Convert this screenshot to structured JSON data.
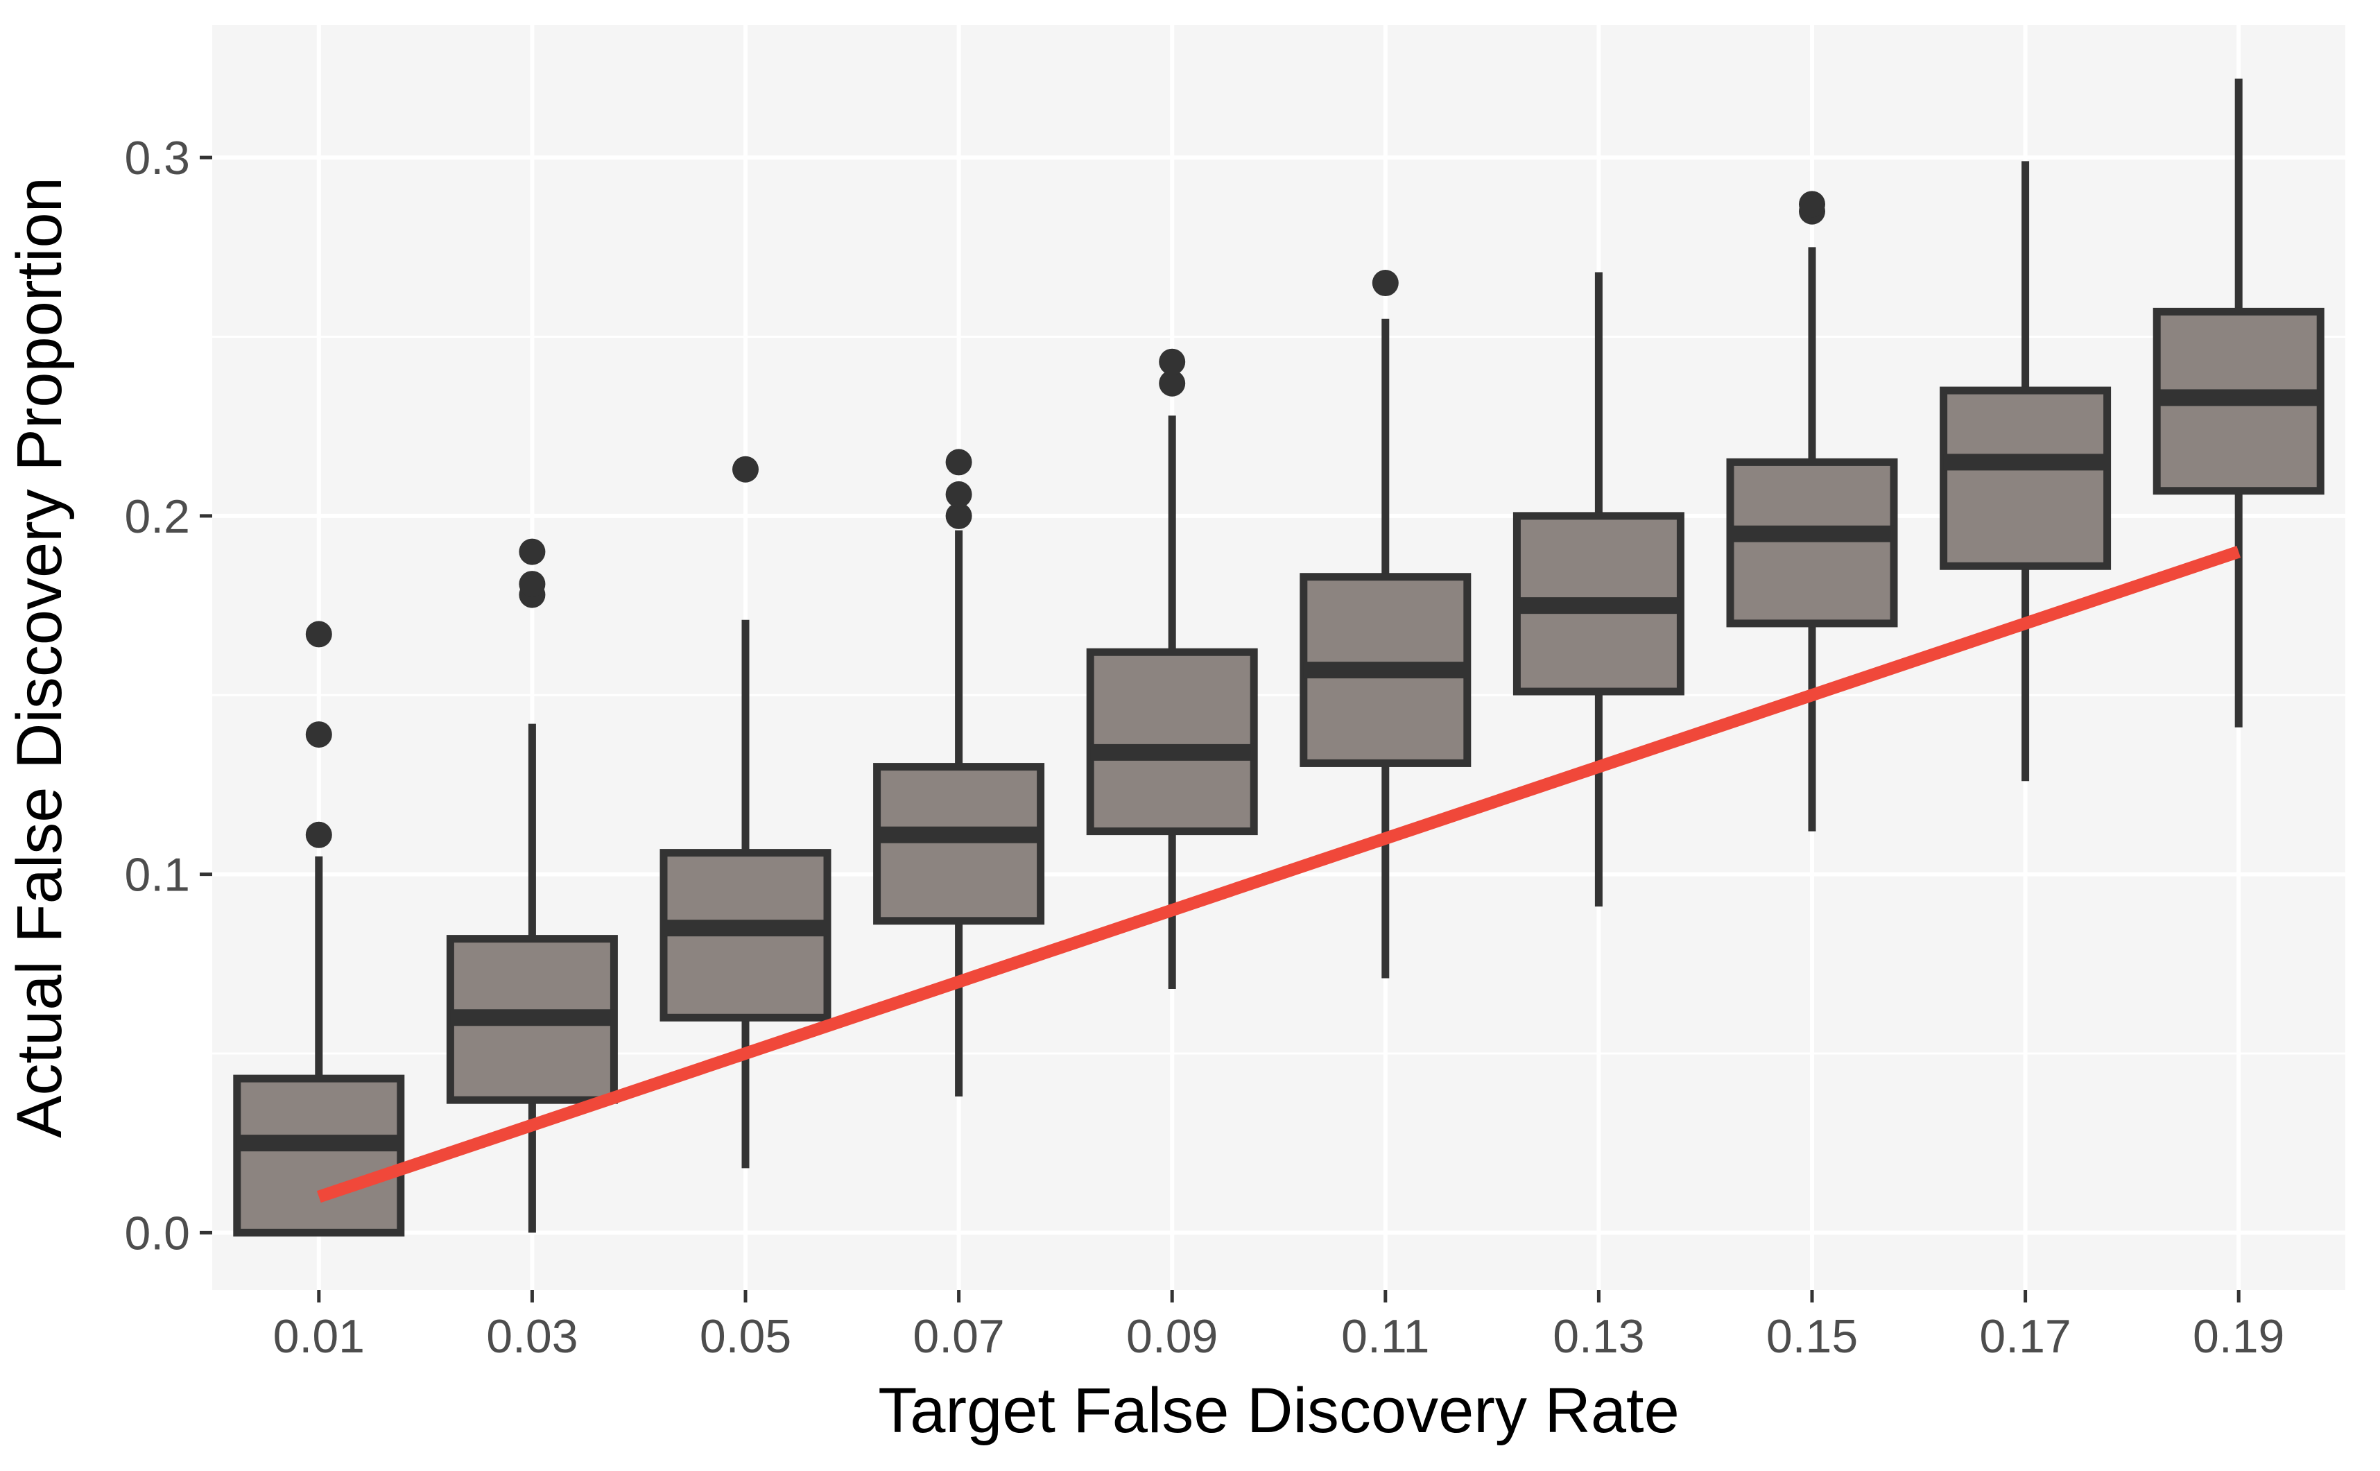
{
  "chart_data": {
    "type": "boxplot",
    "title": "",
    "xlabel": "Target False Discovery Rate",
    "ylabel": "Actual False Discovery Proportion",
    "ylim": [
      -0.016,
      0.337
    ],
    "y_ticks": [
      "0.0",
      "0.1",
      "0.2",
      "0.3"
    ],
    "grid": true,
    "colors": {
      "panel_background": "#f5f5f5",
      "grid": "#ffffff",
      "box_fill": "#8c8480",
      "box_stroke": "#333333",
      "reference_line": "#f0483a"
    },
    "categories": [
      "0.01",
      "0.03",
      "0.05",
      "0.07",
      "0.09",
      "0.11",
      "0.13",
      "0.15",
      "0.17",
      "0.19"
    ],
    "boxes": [
      {
        "x": 0.01,
        "lower_whisker": 0.0,
        "q1": 0.0,
        "median": 0.025,
        "q3": 0.043,
        "upper_whisker": 0.105,
        "outliers": [
          0.111,
          0.139,
          0.167
        ]
      },
      {
        "x": 0.03,
        "lower_whisker": 0.0,
        "q1": 0.037,
        "median": 0.06,
        "q3": 0.082,
        "upper_whisker": 0.142,
        "outliers": [
          0.178,
          0.181,
          0.19
        ]
      },
      {
        "x": 0.05,
        "lower_whisker": 0.018,
        "q1": 0.06,
        "median": 0.085,
        "q3": 0.106,
        "upper_whisker": 0.171,
        "outliers": [
          0.213
        ]
      },
      {
        "x": 0.07,
        "lower_whisker": 0.038,
        "q1": 0.087,
        "median": 0.111,
        "q3": 0.13,
        "upper_whisker": 0.196,
        "outliers": [
          0.2,
          0.206,
          0.215
        ]
      },
      {
        "x": 0.09,
        "lower_whisker": 0.068,
        "q1": 0.112,
        "median": 0.134,
        "q3": 0.162,
        "upper_whisker": 0.228,
        "outliers": [
          0.237,
          0.243
        ]
      },
      {
        "x": 0.11,
        "lower_whisker": 0.071,
        "q1": 0.131,
        "median": 0.157,
        "q3": 0.183,
        "upper_whisker": 0.255,
        "outliers": [
          0.265
        ]
      },
      {
        "x": 0.13,
        "lower_whisker": 0.091,
        "q1": 0.151,
        "median": 0.175,
        "q3": 0.2,
        "upper_whisker": 0.268,
        "outliers": []
      },
      {
        "x": 0.15,
        "lower_whisker": 0.112,
        "q1": 0.17,
        "median": 0.195,
        "q3": 0.215,
        "upper_whisker": 0.275,
        "outliers": [
          0.285,
          0.287
        ]
      },
      {
        "x": 0.17,
        "lower_whisker": 0.126,
        "q1": 0.186,
        "median": 0.215,
        "q3": 0.235,
        "upper_whisker": 0.299,
        "outliers": []
      },
      {
        "x": 0.19,
        "lower_whisker": 0.141,
        "q1": 0.207,
        "median": 0.233,
        "q3": 0.257,
        "upper_whisker": 0.322,
        "outliers": []
      }
    ],
    "reference_line": {
      "x": [
        0.01,
        0.19
      ],
      "y": [
        0.01,
        0.19
      ]
    }
  }
}
